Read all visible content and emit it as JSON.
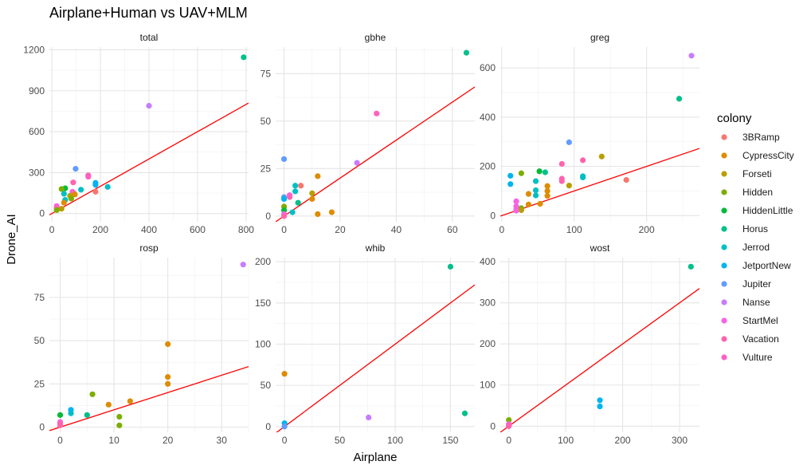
{
  "chart_data": {
    "type": "scatter",
    "title": "Airplane+Human vs UAV+MLM",
    "xlabel": "Airplane",
    "ylabel": "Drone_AI",
    "grid": true,
    "reference_line_color": "#ff0000",
    "legend": {
      "title": "colony",
      "placement": "right",
      "entries": [
        {
          "name": "3BRamp",
          "color": "#F8766D"
        },
        {
          "name": "CypressCity",
          "color": "#DE8C00"
        },
        {
          "name": "Forseti",
          "color": "#B79F00"
        },
        {
          "name": "Hidden",
          "color": "#7CAE00"
        },
        {
          "name": "HiddenLittle",
          "color": "#00BA38"
        },
        {
          "name": "Horus",
          "color": "#00C08B"
        },
        {
          "name": "Jerrod",
          "color": "#00BFC4"
        },
        {
          "name": "JetportNew",
          "color": "#00B4F0"
        },
        {
          "name": "Jupiter",
          "color": "#619CFF"
        },
        {
          "name": "Nanse",
          "color": "#C77CFF"
        },
        {
          "name": "StartMel",
          "color": "#F564E3"
        },
        {
          "name": "Vacation",
          "color": "#FF64B0"
        },
        {
          "name": "Vulture",
          "color": "#FF61C3"
        }
      ]
    },
    "panels": [
      {
        "name": "total",
        "xlim": [
          -10,
          810
        ],
        "ylim": [
          -60,
          1220
        ],
        "xticks": [
          0,
          200,
          400,
          600,
          800
        ],
        "yticks": [
          0,
          300,
          600,
          900,
          1200
        ],
        "line": {
          "slope": 1.0,
          "intercept": 0
        },
        "points": [
          {
            "x": 790,
            "y": 1145,
            "c": "Horus"
          },
          {
            "x": 400,
            "y": 790,
            "c": "Nanse"
          },
          {
            "x": 98,
            "y": 328,
            "c": "Jupiter"
          },
          {
            "x": 150,
            "y": 280,
            "c": "Vacation"
          },
          {
            "x": 150,
            "y": 270,
            "c": "Vulture"
          },
          {
            "x": 88,
            "y": 228,
            "c": "Vacation"
          },
          {
            "x": 180,
            "y": 225,
            "c": "JetportNew"
          },
          {
            "x": 180,
            "y": 210,
            "c": "JetportNew"
          },
          {
            "x": 230,
            "y": 195,
            "c": "Jerrod"
          },
          {
            "x": 55,
            "y": 185,
            "c": "HiddenLittle"
          },
          {
            "x": 40,
            "y": 180,
            "c": "Hidden"
          },
          {
            "x": 120,
            "y": 175,
            "c": "Jerrod"
          },
          {
            "x": 180,
            "y": 160,
            "c": "3BRamp"
          },
          {
            "x": 85,
            "y": 160,
            "c": "StartMel"
          },
          {
            "x": 90,
            "y": 150,
            "c": "Vacation"
          },
          {
            "x": 50,
            "y": 145,
            "c": "Jerrod"
          },
          {
            "x": 95,
            "y": 140,
            "c": "CypressCity"
          },
          {
            "x": 75,
            "y": 130,
            "c": "Forseti"
          },
          {
            "x": 80,
            "y": 110,
            "c": "Hidden"
          },
          {
            "x": 55,
            "y": 100,
            "c": "Jerrod"
          },
          {
            "x": 50,
            "y": 80,
            "c": "CypressCity"
          },
          {
            "x": 20,
            "y": 55,
            "c": "StartMel"
          },
          {
            "x": 20,
            "y": 40,
            "c": "Vacation"
          },
          {
            "x": 40,
            "y": 35,
            "c": "Forseti"
          },
          {
            "x": 20,
            "y": 25,
            "c": "Hidden"
          }
        ]
      },
      {
        "name": "gbhe",
        "xlim": [
          -3,
          68
        ],
        "ylim": [
          -3,
          89
        ],
        "xticks": [
          0,
          20,
          40,
          60
        ],
        "yticks": [
          0,
          25,
          50,
          75
        ],
        "line": {
          "slope": 1.0,
          "intercept": 0
        },
        "points": [
          {
            "x": 65,
            "y": 86,
            "c": "Horus"
          },
          {
            "x": 33,
            "y": 54,
            "c": "Vulture"
          },
          {
            "x": 0,
            "y": 30,
            "c": "Jupiter"
          },
          {
            "x": 26,
            "y": 28,
            "c": "Nanse"
          },
          {
            "x": 12,
            "y": 21,
            "c": "CypressCity"
          },
          {
            "x": 6,
            "y": 16,
            "c": "3BRamp"
          },
          {
            "x": 4,
            "y": 16,
            "c": "Jerrod"
          },
          {
            "x": 4,
            "y": 13,
            "c": "Jerrod"
          },
          {
            "x": 10,
            "y": 12,
            "c": "Forseti"
          },
          {
            "x": 2,
            "y": 11,
            "c": "StartMel"
          },
          {
            "x": 0,
            "y": 10,
            "c": "Jupiter"
          },
          {
            "x": 2,
            "y": 10,
            "c": "Vacation"
          },
          {
            "x": 0,
            "y": 9,
            "c": "JetportNew"
          },
          {
            "x": 10,
            "y": 9,
            "c": "CypressCity"
          },
          {
            "x": 5,
            "y": 7,
            "c": "Horus"
          },
          {
            "x": 0,
            "y": 5,
            "c": "Hidden"
          },
          {
            "x": 0,
            "y": 3,
            "c": "HiddenLittle"
          },
          {
            "x": 3,
            "y": 2,
            "c": "Jerrod"
          },
          {
            "x": 17,
            "y": 2,
            "c": "CypressCity"
          },
          {
            "x": 12,
            "y": 1,
            "c": "CypressCity"
          },
          {
            "x": 0,
            "y": 1,
            "c": "StartMel"
          },
          {
            "x": 0,
            "y": 0,
            "c": "Vacation"
          }
        ]
      },
      {
        "name": "greg",
        "xlim": [
          -2,
          273
        ],
        "ylim": [
          -25,
          685
        ],
        "xticks": [
          0,
          100,
          200
        ],
        "yticks": [
          0,
          200,
          400,
          600
        ],
        "line": {
          "slope": 1.0,
          "intercept": 0
        },
        "points": [
          {
            "x": 262,
            "y": 650,
            "c": "Nanse"
          },
          {
            "x": 245,
            "y": 475,
            "c": "Horus"
          },
          {
            "x": 93,
            "y": 298,
            "c": "Jupiter"
          },
          {
            "x": 138,
            "y": 240,
            "c": "Forseti"
          },
          {
            "x": 112,
            "y": 225,
            "c": "Vacation"
          },
          {
            "x": 83,
            "y": 210,
            "c": "Vacation"
          },
          {
            "x": 52,
            "y": 180,
            "c": "HiddenLittle"
          },
          {
            "x": 60,
            "y": 176,
            "c": "Horus"
          },
          {
            "x": 27,
            "y": 172,
            "c": "Hidden"
          },
          {
            "x": 12,
            "y": 162,
            "c": "JetportNew"
          },
          {
            "x": 112,
            "y": 160,
            "c": "Jerrod"
          },
          {
            "x": 112,
            "y": 155,
            "c": "Jerrod"
          },
          {
            "x": 83,
            "y": 150,
            "c": "Vacation"
          },
          {
            "x": 172,
            "y": 145,
            "c": "3BRamp"
          },
          {
            "x": 83,
            "y": 140,
            "c": "Vacation"
          },
          {
            "x": 47,
            "y": 140,
            "c": "Jerrod"
          },
          {
            "x": 12,
            "y": 128,
            "c": "JetportNew"
          },
          {
            "x": 93,
            "y": 122,
            "c": "Forseti"
          },
          {
            "x": 63,
            "y": 120,
            "c": "CypressCity"
          },
          {
            "x": 47,
            "y": 103,
            "c": "Jerrod"
          },
          {
            "x": 63,
            "y": 100,
            "c": "CypressCity"
          },
          {
            "x": 37,
            "y": 88,
            "c": "CypressCity"
          },
          {
            "x": 47,
            "y": 82,
            "c": "Jerrod"
          },
          {
            "x": 63,
            "y": 80,
            "c": "CypressCity"
          },
          {
            "x": 20,
            "y": 58,
            "c": "StartMel"
          },
          {
            "x": 53,
            "y": 48,
            "c": "CypressCity"
          },
          {
            "x": 37,
            "y": 45,
            "c": "CypressCity"
          },
          {
            "x": 20,
            "y": 38,
            "c": "StartMel"
          },
          {
            "x": 27,
            "y": 30,
            "c": "Hidden"
          },
          {
            "x": 20,
            "y": 25,
            "c": "StartMel"
          },
          {
            "x": 27,
            "y": 22,
            "c": "Forseti"
          },
          {
            "x": 20,
            "y": 20,
            "c": "StartMel"
          }
        ]
      },
      {
        "name": "rosp",
        "xlim": [
          -2,
          35
        ],
        "ylim": [
          -3,
          98
        ],
        "xticks": [
          0,
          10,
          20,
          30
        ],
        "yticks": [
          0,
          25,
          50,
          75
        ],
        "line": {
          "slope": 1.0,
          "intercept": 0
        },
        "points": [
          {
            "x": 34,
            "y": 94,
            "c": "Nanse"
          },
          {
            "x": 20,
            "y": 48,
            "c": "CypressCity"
          },
          {
            "x": 20,
            "y": 29,
            "c": "CypressCity"
          },
          {
            "x": 20,
            "y": 25,
            "c": "CypressCity"
          },
          {
            "x": 6,
            "y": 19,
            "c": "Hidden"
          },
          {
            "x": 13,
            "y": 15,
            "c": "CypressCity"
          },
          {
            "x": 9,
            "y": 13,
            "c": "CypressCity"
          },
          {
            "x": 2,
            "y": 10,
            "c": "JetportNew"
          },
          {
            "x": 2,
            "y": 8,
            "c": "Jerrod"
          },
          {
            "x": 0,
            "y": 7,
            "c": "HiddenLittle"
          },
          {
            "x": 5,
            "y": 7,
            "c": "Horus"
          },
          {
            "x": 11,
            "y": 6,
            "c": "Hidden"
          },
          {
            "x": 0,
            "y": 3,
            "c": "StartMel"
          },
          {
            "x": 0,
            "y": 2,
            "c": "Vacation"
          },
          {
            "x": 11,
            "y": 1,
            "c": "Hidden"
          },
          {
            "x": 0,
            "y": 1,
            "c": "Vacation"
          }
        ]
      },
      {
        "name": "whib",
        "xlim": [
          -8,
          172
        ],
        "ylim": [
          -7,
          205
        ],
        "xticks": [
          0,
          50,
          100,
          150
        ],
        "yticks": [
          0,
          50,
          100,
          150,
          200
        ],
        "line": {
          "slope": 1.0,
          "intercept": 0
        },
        "points": [
          {
            "x": 150,
            "y": 194,
            "c": "Horus"
          },
          {
            "x": 0,
            "y": 64,
            "c": "CypressCity"
          },
          {
            "x": 163,
            "y": 16,
            "c": "Horus"
          },
          {
            "x": 76,
            "y": 11,
            "c": "Nanse"
          },
          {
            "x": 0,
            "y": 4,
            "c": "JetportNew"
          },
          {
            "x": 0,
            "y": 0,
            "c": "Jupiter"
          }
        ]
      },
      {
        "name": "wost",
        "xlim": [
          -15,
          335
        ],
        "ylim": [
          -15,
          410
        ],
        "xticks": [
          0,
          100,
          200,
          300
        ],
        "yticks": [
          0,
          100,
          200,
          300,
          400
        ],
        "line": {
          "slope": 1.0,
          "intercept": 0
        },
        "points": [
          {
            "x": 320,
            "y": 388,
            "c": "Horus"
          },
          {
            "x": 160,
            "y": 63,
            "c": "JetportNew"
          },
          {
            "x": 160,
            "y": 48,
            "c": "JetportNew"
          },
          {
            "x": 0,
            "y": 15,
            "c": "Hidden"
          },
          {
            "x": 0,
            "y": 5,
            "c": "StartMel"
          },
          {
            "x": 0,
            "y": 2,
            "c": "Vacation"
          },
          {
            "x": 0,
            "y": 0,
            "c": "Vacation"
          }
        ]
      }
    ]
  }
}
